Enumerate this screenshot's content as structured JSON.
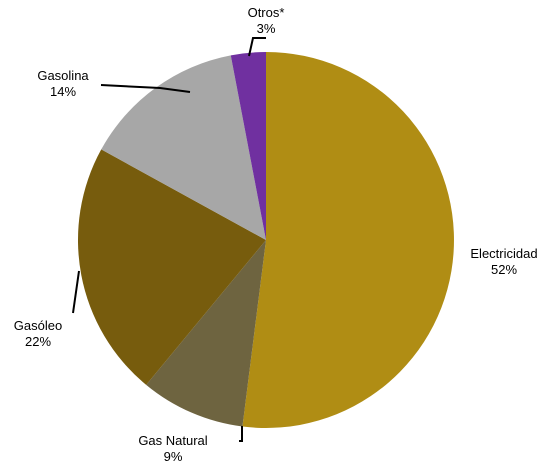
{
  "chart_data": {
    "type": "pie",
    "title": "",
    "start_angle_deg": 0,
    "direction": "clockwise",
    "slices": [
      {
        "label": "Electricidad",
        "percent_label": "52%",
        "value": 52,
        "color": "#B08D14"
      },
      {
        "label": "Gas Natural",
        "percent_label": "9%",
        "value": 9,
        "color": "#6E6440"
      },
      {
        "label": "Gasóleo",
        "percent_label": "22%",
        "value": 22,
        "color": "#775C0D"
      },
      {
        "label": "Gasolina",
        "percent_label": "14%",
        "value": 14,
        "color": "#A7A7A7"
      },
      {
        "label": "Otros*",
        "percent_label": "3%",
        "value": 3,
        "color": "#7030A0"
      }
    ]
  }
}
